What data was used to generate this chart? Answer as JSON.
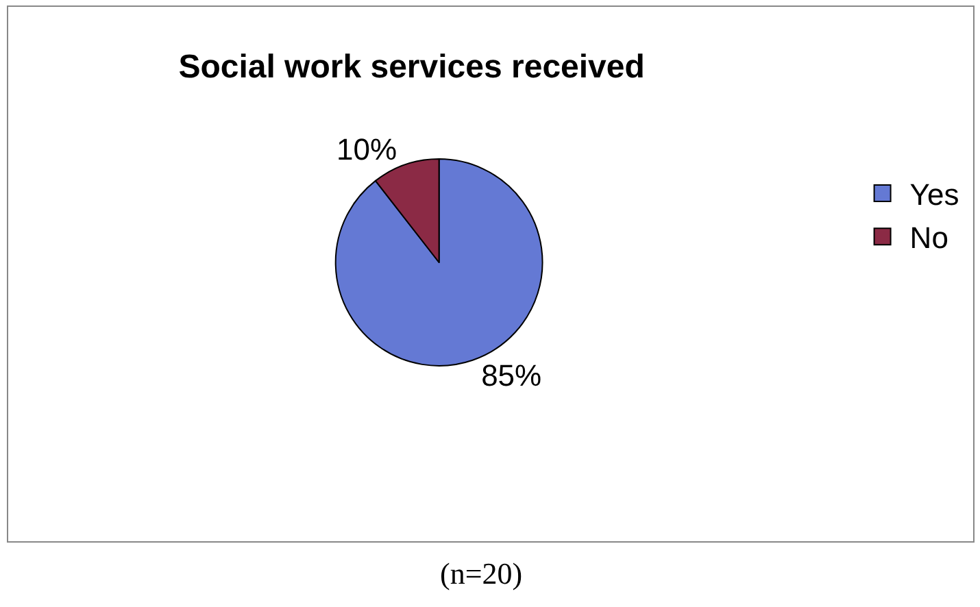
{
  "chart_data": {
    "type": "pie",
    "title": "Social work services received",
    "categories": [
      "Yes",
      "No"
    ],
    "values": [
      85,
      10
    ],
    "value_labels": [
      "85%",
      "10%"
    ],
    "colors": [
      "#6479d4",
      "#8b2a45"
    ],
    "legend": "right",
    "annotations": [
      "(n=20)"
    ]
  }
}
